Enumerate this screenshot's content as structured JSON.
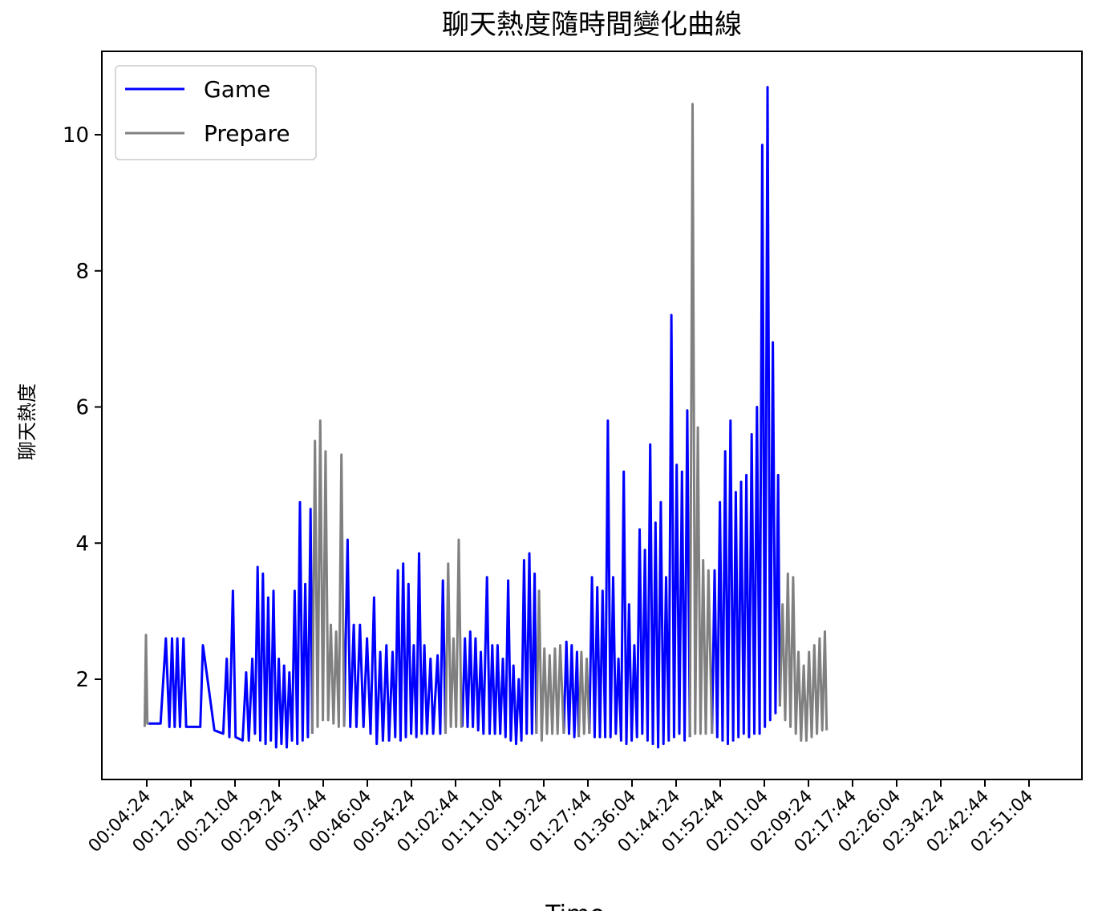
{
  "chart_data": {
    "type": "line",
    "title": "聊天熱度隨時間變化曲線",
    "xlabel": "Time",
    "ylabel": "聊天熱度",
    "x_ticks": [
      "00:04:24",
      "00:12:44",
      "00:21:04",
      "00:29:24",
      "00:37:44",
      "00:46:04",
      "00:54:24",
      "01:02:44",
      "01:11:04",
      "01:19:24",
      "01:27:44",
      "01:36:04",
      "01:44:24",
      "01:52:44",
      "02:01:04",
      "02:09:24",
      "02:17:44",
      "02:26:04",
      "02:34:24",
      "02:42:44",
      "02:51:04"
    ],
    "y_ticks": [
      2,
      4,
      6,
      8,
      10
    ],
    "xlim": [
      "00:00:00",
      "03:00:00"
    ],
    "ylim": [
      0.6,
      11.2
    ],
    "grid": false,
    "legend": "upper-left",
    "series": [
      {
        "name": "Game",
        "color": "#0000ff",
        "segments": [
          [
            [
              "00:04:45",
              1.35
            ],
            [
              "00:07:00",
              1.35
            ],
            [
              "00:08:00",
              2.6
            ],
            [
              "00:08:40",
              1.3
            ],
            [
              "00:09:10",
              2.6
            ],
            [
              "00:09:40",
              1.3
            ],
            [
              "00:10:10",
              2.6
            ],
            [
              "00:10:40",
              1.3
            ],
            [
              "00:11:20",
              2.6
            ],
            [
              "00:11:50",
              1.3
            ],
            [
              "00:14:30",
              1.3
            ],
            [
              "00:15:00",
              2.5
            ],
            [
              "00:17:10",
              1.25
            ],
            [
              "00:18:50",
              1.2
            ],
            [
              "00:19:30",
              2.3
            ],
            [
              "00:20:00",
              1.15
            ],
            [
              "00:20:40",
              3.3
            ],
            [
              "00:21:10",
              1.15
            ],
            [
              "00:22:30",
              1.1
            ],
            [
              "00:23:10",
              2.1
            ],
            [
              "00:23:40",
              1.1
            ],
            [
              "00:24:20",
              2.3
            ],
            [
              "00:24:50",
              1.2
            ],
            [
              "00:25:20",
              3.65
            ],
            [
              "00:25:50",
              1.1
            ],
            [
              "00:26:20",
              3.55
            ],
            [
              "00:26:50",
              1.05
            ],
            [
              "00:27:20",
              3.2
            ],
            [
              "00:27:50",
              1.1
            ],
            [
              "00:28:20",
              3.3
            ],
            [
              "00:28:50",
              1.0
            ],
            [
              "00:29:20",
              2.3
            ],
            [
              "00:29:50",
              1.05
            ],
            [
              "00:30:20",
              2.2
            ],
            [
              "00:30:50",
              1.0
            ],
            [
              "00:31:20",
              2.1
            ],
            [
              "00:31:50",
              1.1
            ],
            [
              "00:32:20",
              3.3
            ],
            [
              "00:32:50",
              1.05
            ],
            [
              "00:33:20",
              4.6
            ],
            [
              "00:33:50",
              1.1
            ],
            [
              "00:34:20",
              3.4
            ],
            [
              "00:34:50",
              1.15
            ],
            [
              "00:35:20",
              4.5
            ],
            [
              "00:35:40",
              1.2
            ]
          ],
          [
            [
              "00:41:40",
              1.3
            ],
            [
              "00:42:20",
              4.05
            ],
            [
              "00:42:50",
              1.3
            ],
            [
              "00:43:30",
              2.8
            ],
            [
              "00:44:00",
              1.3
            ],
            [
              "00:44:40",
              2.8
            ],
            [
              "00:45:20",
              1.3
            ],
            [
              "00:46:00",
              2.6
            ],
            [
              "00:46:40",
              1.2
            ],
            [
              "00:47:20",
              3.2
            ],
            [
              "00:47:50",
              1.05
            ],
            [
              "00:48:30",
              2.4
            ],
            [
              "00:49:00",
              1.1
            ],
            [
              "00:49:40",
              2.5
            ],
            [
              "00:50:10",
              1.1
            ],
            [
              "00:50:50",
              2.4
            ],
            [
              "00:51:20",
              1.15
            ],
            [
              "00:51:50",
              3.6
            ],
            [
              "00:52:20",
              1.1
            ],
            [
              "00:52:50",
              3.7
            ],
            [
              "00:53:20",
              1.15
            ],
            [
              "00:53:50",
              3.4
            ],
            [
              "00:54:20",
              1.2
            ],
            [
              "00:54:50",
              2.5
            ],
            [
              "00:55:20",
              1.15
            ],
            [
              "00:55:50",
              3.85
            ],
            [
              "00:56:20",
              1.2
            ],
            [
              "00:56:50",
              2.5
            ],
            [
              "00:57:20",
              1.2
            ],
            [
              "00:58:00",
              2.3
            ],
            [
              "00:58:30",
              1.2
            ],
            [
              "00:59:20",
              2.35
            ],
            [
              "00:59:50",
              1.2
            ],
            [
              "01:00:20",
              3.45
            ],
            [
              "01:00:50",
              1.2
            ]
          ],
          [
            [
              "01:04:00",
              1.3
            ],
            [
              "01:04:30",
              2.6
            ],
            [
              "01:05:00",
              1.3
            ],
            [
              "01:05:30",
              2.7
            ],
            [
              "01:06:00",
              1.3
            ],
            [
              "01:06:30",
              2.6
            ],
            [
              "01:07:00",
              1.25
            ],
            [
              "01:07:30",
              2.4
            ],
            [
              "01:08:00",
              1.2
            ],
            [
              "01:08:40",
              3.5
            ],
            [
              "01:09:10",
              1.2
            ],
            [
              "01:09:40",
              2.5
            ],
            [
              "01:10:10",
              1.2
            ],
            [
              "01:10:40",
              2.5
            ],
            [
              "01:11:10",
              1.2
            ],
            [
              "01:11:40",
              2.3
            ],
            [
              "01:12:10",
              1.15
            ],
            [
              "01:12:40",
              3.45
            ],
            [
              "01:13:10",
              1.1
            ],
            [
              "01:13:40",
              2.2
            ],
            [
              "01:14:10",
              1.05
            ],
            [
              "01:14:40",
              2.0
            ],
            [
              "01:15:10",
              1.1
            ],
            [
              "01:15:40",
              3.75
            ],
            [
              "01:16:10",
              1.2
            ],
            [
              "01:16:40",
              3.85
            ],
            [
              "01:17:10",
              1.2
            ],
            [
              "01:17:40",
              3.55
            ],
            [
              "01:18:00",
              1.2
            ]
          ],
          [
            [
              "01:23:10",
              1.2
            ],
            [
              "01:23:40",
              2.55
            ],
            [
              "01:24:10",
              1.2
            ],
            [
              "01:24:40",
              2.5
            ],
            [
              "01:25:10",
              1.15
            ],
            [
              "01:25:40",
              2.4
            ],
            [
              "01:26:00",
              1.15
            ]
          ],
          [
            [
              "01:28:00",
              1.2
            ],
            [
              "01:28:30",
              3.5
            ],
            [
              "01:29:00",
              1.15
            ],
            [
              "01:29:30",
              3.35
            ],
            [
              "01:30:00",
              1.15
            ],
            [
              "01:30:30",
              3.3
            ],
            [
              "01:31:00",
              1.15
            ],
            [
              "01:31:30",
              5.8
            ],
            [
              "01:32:00",
              1.15
            ],
            [
              "01:32:30",
              3.5
            ],
            [
              "01:33:00",
              1.2
            ],
            [
              "01:33:30",
              2.3
            ],
            [
              "01:34:00",
              1.1
            ],
            [
              "01:34:30",
              5.05
            ],
            [
              "01:35:00",
              1.05
            ],
            [
              "01:35:30",
              3.1
            ],
            [
              "01:36:00",
              1.1
            ],
            [
              "01:36:30",
              2.5
            ],
            [
              "01:37:00",
              1.15
            ],
            [
              "01:37:30",
              4.2
            ],
            [
              "01:38:00",
              1.2
            ],
            [
              "01:38:30",
              3.9
            ],
            [
              "01:39:00",
              1.1
            ],
            [
              "01:39:30",
              5.45
            ],
            [
              "01:40:00",
              1.05
            ],
            [
              "01:40:30",
              4.3
            ],
            [
              "01:41:00",
              1.0
            ],
            [
              "01:41:30",
              4.6
            ],
            [
              "01:42:00",
              1.05
            ],
            [
              "01:42:30",
              3.5
            ],
            [
              "01:43:00",
              1.1
            ],
            [
              "01:43:30",
              7.35
            ],
            [
              "01:44:00",
              1.15
            ],
            [
              "01:44:30",
              5.15
            ],
            [
              "01:45:00",
              1.2
            ],
            [
              "01:45:30",
              5.05
            ],
            [
              "01:46:00",
              1.1
            ],
            [
              "01:46:30",
              5.95
            ],
            [
              "01:47:00",
              1.15
            ]
          ],
          [
            [
              "01:51:10",
              1.2
            ],
            [
              "01:51:40",
              3.6
            ],
            [
              "01:52:10",
              1.15
            ],
            [
              "01:52:40",
              4.6
            ],
            [
              "01:53:10",
              1.1
            ],
            [
              "01:53:40",
              5.35
            ],
            [
              "01:54:10",
              1.05
            ],
            [
              "01:54:40",
              5.8
            ],
            [
              "01:55:10",
              1.1
            ],
            [
              "01:55:40",
              4.75
            ],
            [
              "01:56:10",
              1.15
            ],
            [
              "01:56:40",
              4.9
            ],
            [
              "01:57:10",
              1.2
            ],
            [
              "01:57:40",
              5.0
            ],
            [
              "01:58:10",
              1.15
            ],
            [
              "01:58:40",
              5.6
            ],
            [
              "01:59:10",
              1.2
            ],
            [
              "01:59:40",
              6.0
            ],
            [
              "02:00:10",
              1.2
            ],
            [
              "02:00:40",
              9.85
            ],
            [
              "02:01:10",
              1.3
            ],
            [
              "02:01:40",
              10.7
            ],
            [
              "02:02:10",
              1.4
            ],
            [
              "02:02:40",
              6.95
            ],
            [
              "02:03:10",
              1.5
            ],
            [
              "02:03:40",
              5.0
            ],
            [
              "02:04:00",
              1.6
            ]
          ]
        ]
      },
      {
        "name": "Prepare",
        "color": "#808080",
        "segments": [
          [
            [
              "00:04:00",
              1.3
            ],
            [
              "00:04:15",
              2.65
            ],
            [
              "00:04:30",
              1.35
            ],
            [
              "00:04:45",
              1.35
            ]
          ],
          [
            [
              "00:35:40",
              1.2
            ],
            [
              "00:36:10",
              5.5
            ],
            [
              "00:36:40",
              1.3
            ],
            [
              "00:37:10",
              5.8
            ],
            [
              "00:37:40",
              1.4
            ],
            [
              "00:38:10",
              5.35
            ],
            [
              "00:38:40",
              1.4
            ],
            [
              "00:39:10",
              2.8
            ],
            [
              "00:39:40",
              1.35
            ],
            [
              "00:40:10",
              2.7
            ],
            [
              "00:40:40",
              1.3
            ],
            [
              "00:41:10",
              5.3
            ],
            [
              "00:41:40",
              1.3
            ]
          ],
          [
            [
              "01:00:50",
              1.2
            ],
            [
              "01:01:20",
              3.7
            ],
            [
              "01:01:50",
              1.3
            ],
            [
              "01:02:20",
              2.6
            ],
            [
              "01:02:50",
              1.3
            ],
            [
              "01:03:20",
              4.05
            ],
            [
              "01:03:50",
              1.3
            ],
            [
              "01:04:00",
              1.3
            ]
          ],
          [
            [
              "01:18:00",
              1.2
            ],
            [
              "01:18:30",
              3.3
            ],
            [
              "01:19:00",
              1.1
            ],
            [
              "01:19:30",
              2.45
            ],
            [
              "01:20:00",
              1.2
            ],
            [
              "01:20:30",
              2.35
            ],
            [
              "01:21:00",
              1.2
            ],
            [
              "01:21:30",
              2.45
            ],
            [
              "01:22:00",
              1.2
            ],
            [
              "01:22:30",
              2.5
            ],
            [
              "01:23:10",
              1.2
            ]
          ],
          [
            [
              "01:26:00",
              1.15
            ],
            [
              "01:26:30",
              2.4
            ],
            [
              "01:27:00",
              1.2
            ],
            [
              "01:27:30",
              2.3
            ],
            [
              "01:28:00",
              1.2
            ]
          ],
          [
            [
              "01:47:00",
              1.15
            ],
            [
              "01:47:30",
              10.45
            ],
            [
              "01:48:00",
              1.2
            ],
            [
              "01:48:30",
              5.7
            ],
            [
              "01:49:00",
              1.2
            ],
            [
              "01:49:30",
              3.75
            ],
            [
              "01:50:00",
              1.2
            ],
            [
              "01:50:30",
              3.6
            ],
            [
              "01:51:10",
              1.2
            ]
          ],
          [
            [
              "02:04:00",
              1.6
            ],
            [
              "02:04:30",
              3.1
            ],
            [
              "02:05:00",
              1.4
            ],
            [
              "02:05:30",
              3.55
            ],
            [
              "02:06:00",
              1.3
            ],
            [
              "02:06:30",
              3.5
            ],
            [
              "02:07:00",
              1.2
            ],
            [
              "02:07:30",
              2.4
            ],
            [
              "02:08:00",
              1.1
            ],
            [
              "02:08:30",
              2.2
            ],
            [
              "02:09:00",
              1.1
            ],
            [
              "02:09:30",
              2.4
            ],
            [
              "02:10:00",
              1.15
            ],
            [
              "02:10:30",
              2.5
            ],
            [
              "02:11:00",
              1.2
            ],
            [
              "02:11:30",
              2.6
            ],
            [
              "02:12:00",
              1.25
            ],
            [
              "02:12:30",
              2.7
            ],
            [
              "02:12:50",
              1.25
            ]
          ]
        ]
      }
    ]
  }
}
